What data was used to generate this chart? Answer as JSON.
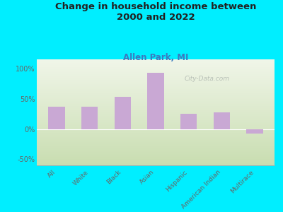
{
  "title": "Change in household income between\n2000 and 2022",
  "subtitle": "Allen Park, MI",
  "categories": [
    "All",
    "White",
    "Black",
    "Asian",
    "Hispanic",
    "American Indian",
    "Multirace"
  ],
  "values": [
    37,
    37,
    53,
    93,
    25,
    28,
    -8
  ],
  "bar_color": "#c9a8d4",
  "background_outer": "#00eeff",
  "background_plot_top": "#f0f5e8",
  "background_plot_bottom": "#c8ddb0",
  "ylim": [
    -60,
    115
  ],
  "yticks": [
    -50,
    0,
    50,
    100
  ],
  "ytick_labels": [
    "-50%",
    "0%",
    "50%",
    "100%"
  ],
  "title_fontsize": 9.5,
  "subtitle_fontsize": 8.5,
  "subtitle_color": "#3a7abf",
  "tick_label_color": "#666666",
  "watermark": "City-Data.com",
  "watermark_color": "#b0b8b0"
}
